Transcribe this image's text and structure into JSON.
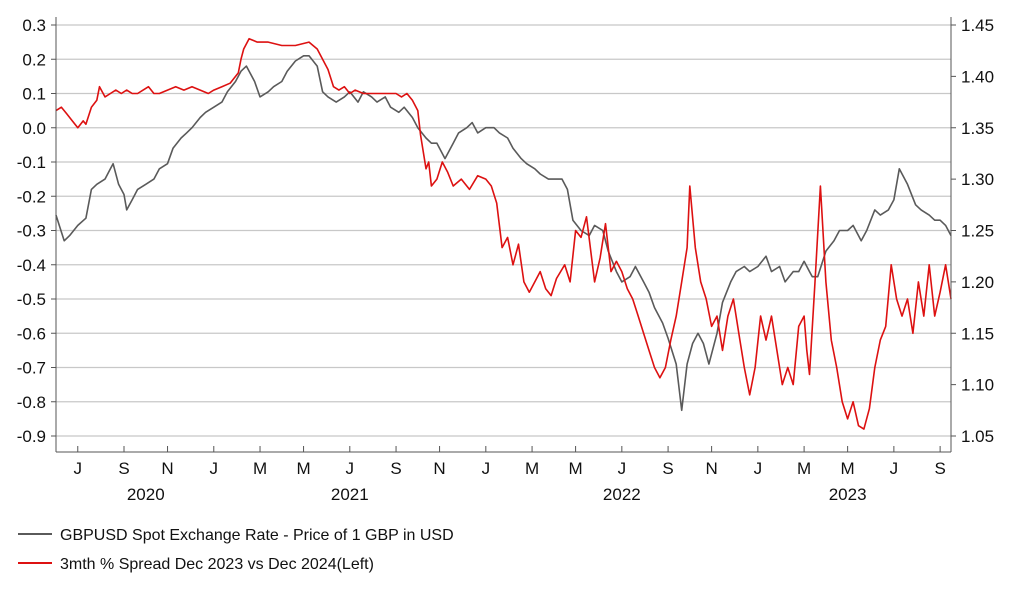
{
  "chart_data": {
    "type": "line",
    "title": "",
    "x_range": [
      2020.42,
      2023.71
    ],
    "month_ticks": [
      {
        "label": "J",
        "x": 2020.5
      },
      {
        "label": "S",
        "x": 2020.67
      },
      {
        "label": "N",
        "x": 2020.83
      },
      {
        "label": "J",
        "x": 2021.0
      },
      {
        "label": "M",
        "x": 2021.17
      },
      {
        "label": "M",
        "x": 2021.33
      },
      {
        "label": "J",
        "x": 2021.5
      },
      {
        "label": "S",
        "x": 2021.67
      },
      {
        "label": "N",
        "x": 2021.83
      },
      {
        "label": "J",
        "x": 2022.0
      },
      {
        "label": "M",
        "x": 2022.17
      },
      {
        "label": "M",
        "x": 2022.33
      },
      {
        "label": "J",
        "x": 2022.5
      },
      {
        "label": "S",
        "x": 2022.67
      },
      {
        "label": "N",
        "x": 2022.83
      },
      {
        "label": "J",
        "x": 2023.0
      },
      {
        "label": "M",
        "x": 2023.17
      },
      {
        "label": "M",
        "x": 2023.33
      },
      {
        "label": "J",
        "x": 2023.5
      },
      {
        "label": "S",
        "x": 2023.67
      }
    ],
    "year_labels": [
      {
        "label": "2020",
        "x": 2020.75
      },
      {
        "label": "2021",
        "x": 2021.5
      },
      {
        "label": "2022",
        "x": 2022.5
      },
      {
        "label": "2023",
        "x": 2023.33
      }
    ],
    "y_left": {
      "min": -0.9,
      "max": 0.3,
      "ticks": [
        "0.3",
        "0.2",
        "0.1",
        "0.0",
        "-0.1",
        "-0.2",
        "-0.3",
        "-0.4",
        "-0.5",
        "-0.6",
        "-0.7",
        "-0.8",
        "-0.9"
      ]
    },
    "y_right": {
      "min": 1.05,
      "max": 1.45,
      "ticks": [
        "1.45",
        "1.40",
        "1.35",
        "1.30",
        "1.25",
        "1.20",
        "1.15",
        "1.10",
        "1.05"
      ]
    },
    "grid": true,
    "legend_position": "bottom-left",
    "series": [
      {
        "name": "GBPUSD Spot Exchange Rate - Price of 1 GBP in USD",
        "axis": "right",
        "color": "#5a5a5a",
        "x": [
          2020.42,
          2020.45,
          2020.47,
          2020.5,
          2020.53,
          2020.55,
          2020.57,
          2020.6,
          2020.62,
          2020.63,
          2020.65,
          2020.67,
          2020.68,
          2020.7,
          2020.72,
          2020.75,
          2020.78,
          2020.8,
          2020.83,
          2020.85,
          2020.88,
          2020.9,
          2020.92,
          2020.95,
          2020.97,
          2021.0,
          2021.03,
          2021.05,
          2021.08,
          2021.1,
          2021.12,
          2021.15,
          2021.17,
          2021.2,
          2021.22,
          2021.25,
          2021.27,
          2021.3,
          2021.33,
          2021.35,
          2021.38,
          2021.4,
          2021.42,
          2021.45,
          2021.48,
          2021.5,
          2021.53,
          2021.55,
          2021.58,
          2021.6,
          2021.63,
          2021.65,
          2021.68,
          2021.7,
          2021.73,
          2021.75,
          2021.78,
          2021.8,
          2021.82,
          2021.85,
          2021.88,
          2021.9,
          2021.93,
          2021.95,
          2021.97,
          2022.0,
          2022.03,
          2022.05,
          2022.08,
          2022.1,
          2022.13,
          2022.15,
          2022.18,
          2022.2,
          2022.23,
          2022.25,
          2022.28,
          2022.3,
          2022.32,
          2022.35,
          2022.38,
          2022.4,
          2022.43,
          2022.45,
          2022.48,
          2022.5,
          2022.53,
          2022.55,
          2022.58,
          2022.6,
          2022.62,
          2022.65,
          2022.67,
          2022.7,
          2022.72,
          2022.74,
          2022.76,
          2022.78,
          2022.8,
          2022.82,
          2022.85,
          2022.87,
          2022.9,
          2022.92,
          2022.95,
          2022.97,
          2023.0,
          2023.03,
          2023.05,
          2023.08,
          2023.1,
          2023.13,
          2023.15,
          2023.17,
          2023.19,
          2023.2,
          2023.22,
          2023.25,
          2023.28,
          2023.3,
          2023.33,
          2023.35,
          2023.38,
          2023.4,
          2023.43,
          2023.45,
          2023.48,
          2023.5,
          2023.52,
          2023.55,
          2023.58,
          2023.6,
          2023.63,
          2023.65,
          2023.67,
          2023.69,
          2023.71
        ],
        "y": [
          1.265,
          1.24,
          1.245,
          1.255,
          1.262,
          1.29,
          1.295,
          1.3,
          1.31,
          1.315,
          1.295,
          1.285,
          1.27,
          1.28,
          1.29,
          1.295,
          1.3,
          1.31,
          1.315,
          1.33,
          1.34,
          1.345,
          1.35,
          1.36,
          1.365,
          1.37,
          1.375,
          1.385,
          1.395,
          1.405,
          1.41,
          1.395,
          1.38,
          1.385,
          1.39,
          1.395,
          1.405,
          1.415,
          1.42,
          1.42,
          1.41,
          1.385,
          1.38,
          1.375,
          1.38,
          1.385,
          1.375,
          1.385,
          1.38,
          1.375,
          1.38,
          1.37,
          1.365,
          1.37,
          1.36,
          1.35,
          1.34,
          1.335,
          1.335,
          1.32,
          1.335,
          1.345,
          1.35,
          1.355,
          1.345,
          1.35,
          1.35,
          1.345,
          1.34,
          1.33,
          1.32,
          1.315,
          1.31,
          1.305,
          1.3,
          1.3,
          1.3,
          1.29,
          1.26,
          1.25,
          1.245,
          1.255,
          1.25,
          1.23,
          1.21,
          1.2,
          1.205,
          1.215,
          1.2,
          1.19,
          1.175,
          1.16,
          1.145,
          1.12,
          1.075,
          1.12,
          1.14,
          1.15,
          1.14,
          1.12,
          1.15,
          1.18,
          1.2,
          1.21,
          1.215,
          1.21,
          1.215,
          1.225,
          1.21,
          1.215,
          1.2,
          1.21,
          1.21,
          1.22,
          1.21,
          1.205,
          1.205,
          1.23,
          1.24,
          1.25,
          1.25,
          1.255,
          1.24,
          1.25,
          1.27,
          1.265,
          1.27,
          1.28,
          1.31,
          1.295,
          1.275,
          1.27,
          1.265,
          1.26,
          1.26,
          1.255,
          1.245
        ]
      },
      {
        "name": "3mth % Spread Dec 2023 vs Dec 2024(Left)",
        "axis": "left",
        "color": "#dd1111",
        "x": [
          2020.42,
          2020.44,
          2020.46,
          2020.48,
          2020.5,
          2020.52,
          2020.53,
          2020.55,
          2020.57,
          2020.58,
          2020.6,
          2020.62,
          2020.64,
          2020.66,
          2020.68,
          2020.7,
          2020.72,
          2020.74,
          2020.76,
          2020.78,
          2020.8,
          2020.83,
          2020.86,
          2020.89,
          2020.92,
          2020.95,
          2020.98,
          2021.0,
          2021.03,
          2021.06,
          2021.09,
          2021.1,
          2021.11,
          2021.13,
          2021.16,
          2021.2,
          2021.25,
          2021.3,
          2021.35,
          2021.38,
          2021.4,
          2021.42,
          2021.44,
          2021.46,
          2021.48,
          2021.5,
          2021.52,
          2021.55,
          2021.58,
          2021.61,
          2021.64,
          2021.67,
          2021.69,
          2021.71,
          2021.73,
          2021.75,
          2021.76,
          2021.78,
          2021.79,
          2021.8,
          2021.82,
          2021.84,
          2021.86,
          2021.88,
          2021.91,
          2021.94,
          2021.97,
          2022.0,
          2022.02,
          2022.04,
          2022.06,
          2022.08,
          2022.1,
          2022.12,
          2022.14,
          2022.16,
          2022.18,
          2022.2,
          2022.22,
          2022.24,
          2022.26,
          2022.29,
          2022.31,
          2022.33,
          2022.35,
          2022.37,
          2022.4,
          2022.42,
          2022.44,
          2022.46,
          2022.48,
          2022.5,
          2022.52,
          2022.54,
          2022.56,
          2022.58,
          2022.6,
          2022.62,
          2022.64,
          2022.66,
          2022.68,
          2022.7,
          2022.72,
          2022.74,
          2022.75,
          2022.77,
          2022.79,
          2022.81,
          2022.83,
          2022.85,
          2022.87,
          2022.89,
          2022.91,
          2022.93,
          2022.95,
          2022.97,
          2022.99,
          2023.01,
          2023.03,
          2023.05,
          2023.07,
          2023.09,
          2023.11,
          2023.13,
          2023.15,
          2023.17,
          2023.18,
          2023.19,
          2023.21,
          2023.23,
          2023.25,
          2023.27,
          2023.29,
          2023.31,
          2023.33,
          2023.35,
          2023.37,
          2023.39,
          2023.41,
          2023.43,
          2023.45,
          2023.47,
          2023.49,
          2023.51,
          2023.53,
          2023.55,
          2023.57,
          2023.59,
          2023.61,
          2023.63,
          2023.65,
          2023.67,
          2023.69,
          2023.71
        ],
        "y": [
          0.05,
          0.06,
          0.04,
          0.02,
          0.0,
          0.02,
          0.01,
          0.06,
          0.08,
          0.12,
          0.09,
          0.1,
          0.11,
          0.1,
          0.11,
          0.1,
          0.1,
          0.11,
          0.12,
          0.1,
          0.1,
          0.11,
          0.12,
          0.11,
          0.12,
          0.11,
          0.1,
          0.11,
          0.12,
          0.13,
          0.16,
          0.2,
          0.23,
          0.26,
          0.25,
          0.25,
          0.24,
          0.24,
          0.25,
          0.23,
          0.2,
          0.17,
          0.12,
          0.11,
          0.12,
          0.1,
          0.11,
          0.1,
          0.1,
          0.1,
          0.1,
          0.1,
          0.09,
          0.1,
          0.08,
          0.05,
          -0.02,
          -0.12,
          -0.1,
          -0.17,
          -0.15,
          -0.1,
          -0.13,
          -0.17,
          -0.15,
          -0.18,
          -0.14,
          -0.15,
          -0.17,
          -0.22,
          -0.35,
          -0.32,
          -0.4,
          -0.34,
          -0.45,
          -0.48,
          -0.45,
          -0.42,
          -0.47,
          -0.49,
          -0.44,
          -0.4,
          -0.45,
          -0.3,
          -0.32,
          -0.26,
          -0.45,
          -0.38,
          -0.28,
          -0.42,
          -0.39,
          -0.42,
          -0.47,
          -0.5,
          -0.55,
          -0.6,
          -0.65,
          -0.7,
          -0.73,
          -0.7,
          -0.62,
          -0.55,
          -0.45,
          -0.35,
          -0.17,
          -0.35,
          -0.45,
          -0.5,
          -0.58,
          -0.55,
          -0.65,
          -0.55,
          -0.5,
          -0.6,
          -0.7,
          -0.78,
          -0.7,
          -0.55,
          -0.62,
          -0.55,
          -0.65,
          -0.75,
          -0.7,
          -0.75,
          -0.58,
          -0.55,
          -0.65,
          -0.72,
          -0.45,
          -0.17,
          -0.45,
          -0.62,
          -0.7,
          -0.8,
          -0.85,
          -0.8,
          -0.87,
          -0.88,
          -0.82,
          -0.7,
          -0.62,
          -0.58,
          -0.4,
          -0.5,
          -0.55,
          -0.5,
          -0.6,
          -0.45,
          -0.55,
          -0.4,
          -0.55,
          -0.48,
          -0.4,
          -0.5
        ]
      }
    ]
  },
  "legend": [
    {
      "label": "GBPUSD Spot Exchange Rate - Price of 1 GBP in USD",
      "color": "#5a5a5a"
    },
    {
      "label": "3mth % Spread Dec 2023 vs Dec 2024(Left)",
      "color": "#dd1111"
    }
  ]
}
